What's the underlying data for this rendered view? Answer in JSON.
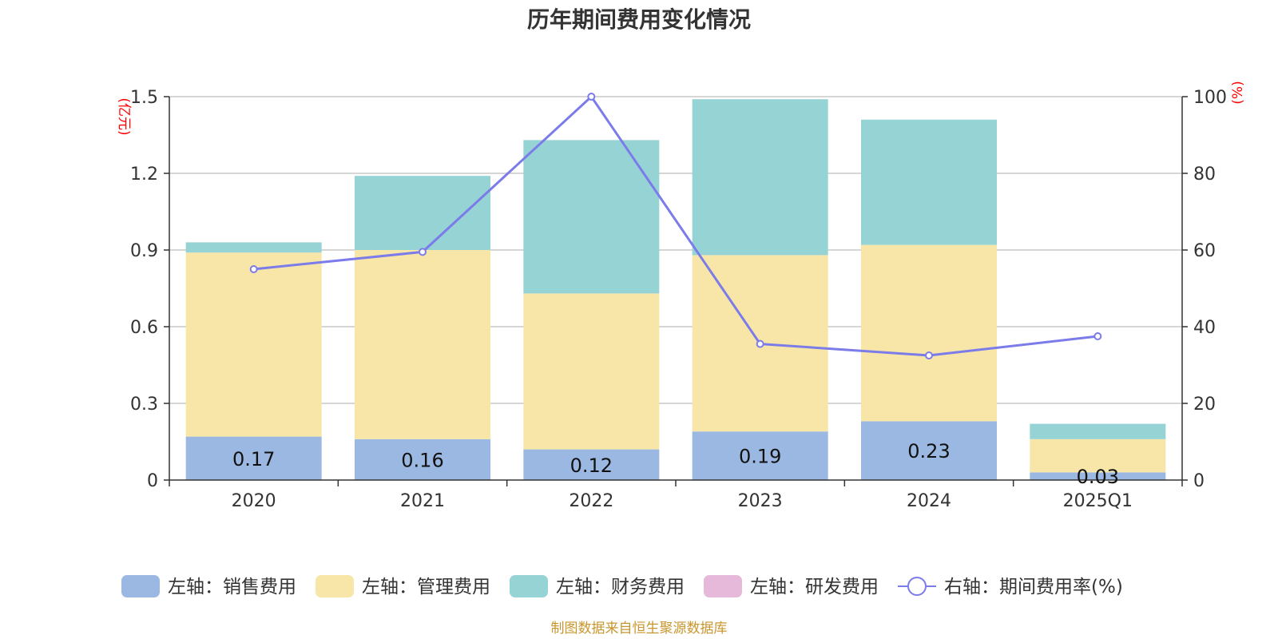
{
  "chart_data": {
    "type": "bar",
    "title": "历年期间费用变化情况",
    "categories": [
      "2020",
      "2021",
      "2022",
      "2023",
      "2024",
      "2025Q1"
    ],
    "left_axis": {
      "unit": "(亿元)",
      "ylim": [
        0,
        1.5
      ],
      "ticks": [
        "0",
        "0.3",
        "0.6",
        "0.9",
        "1.2",
        "1.5"
      ]
    },
    "right_axis": {
      "unit": "(%)",
      "ylim": [
        0,
        100
      ],
      "ticks": [
        "0",
        "20",
        "40",
        "60",
        "80",
        "100"
      ]
    },
    "series": [
      {
        "name": "左轴：销售费用",
        "kind": "bar",
        "axis": "left",
        "color": "#9bb8e2",
        "values": [
          0.17,
          0.16,
          0.12,
          0.19,
          0.23,
          0.03
        ],
        "labels": [
          "0.17",
          "0.16",
          "0.12",
          "0.19",
          "0.23",
          "0.03"
        ]
      },
      {
        "name": "左轴：管理费用",
        "kind": "bar",
        "axis": "left",
        "color": "#f7e6a8",
        "values": [
          0.72,
          0.74,
          0.61,
          0.69,
          0.69,
          0.13
        ]
      },
      {
        "name": "左轴：财务费用",
        "kind": "bar",
        "axis": "left",
        "color": "#96d3d4",
        "values": [
          0.04,
          0.29,
          0.6,
          0.61,
          0.49,
          0.06
        ]
      },
      {
        "name": "左轴：研发费用",
        "kind": "bar",
        "axis": "left",
        "color": "#e6b8d9",
        "values": [
          0,
          0,
          0,
          0,
          0,
          0
        ]
      },
      {
        "name": "右轴：期间费用率(%)",
        "kind": "line",
        "axis": "right",
        "color": "#7b7bea",
        "values": [
          55,
          59.5,
          100,
          35.5,
          32.5,
          37.5
        ]
      }
    ],
    "grid": true,
    "legend_position": "bottom"
  },
  "source_note": "制图数据来自恒生聚源数据库"
}
